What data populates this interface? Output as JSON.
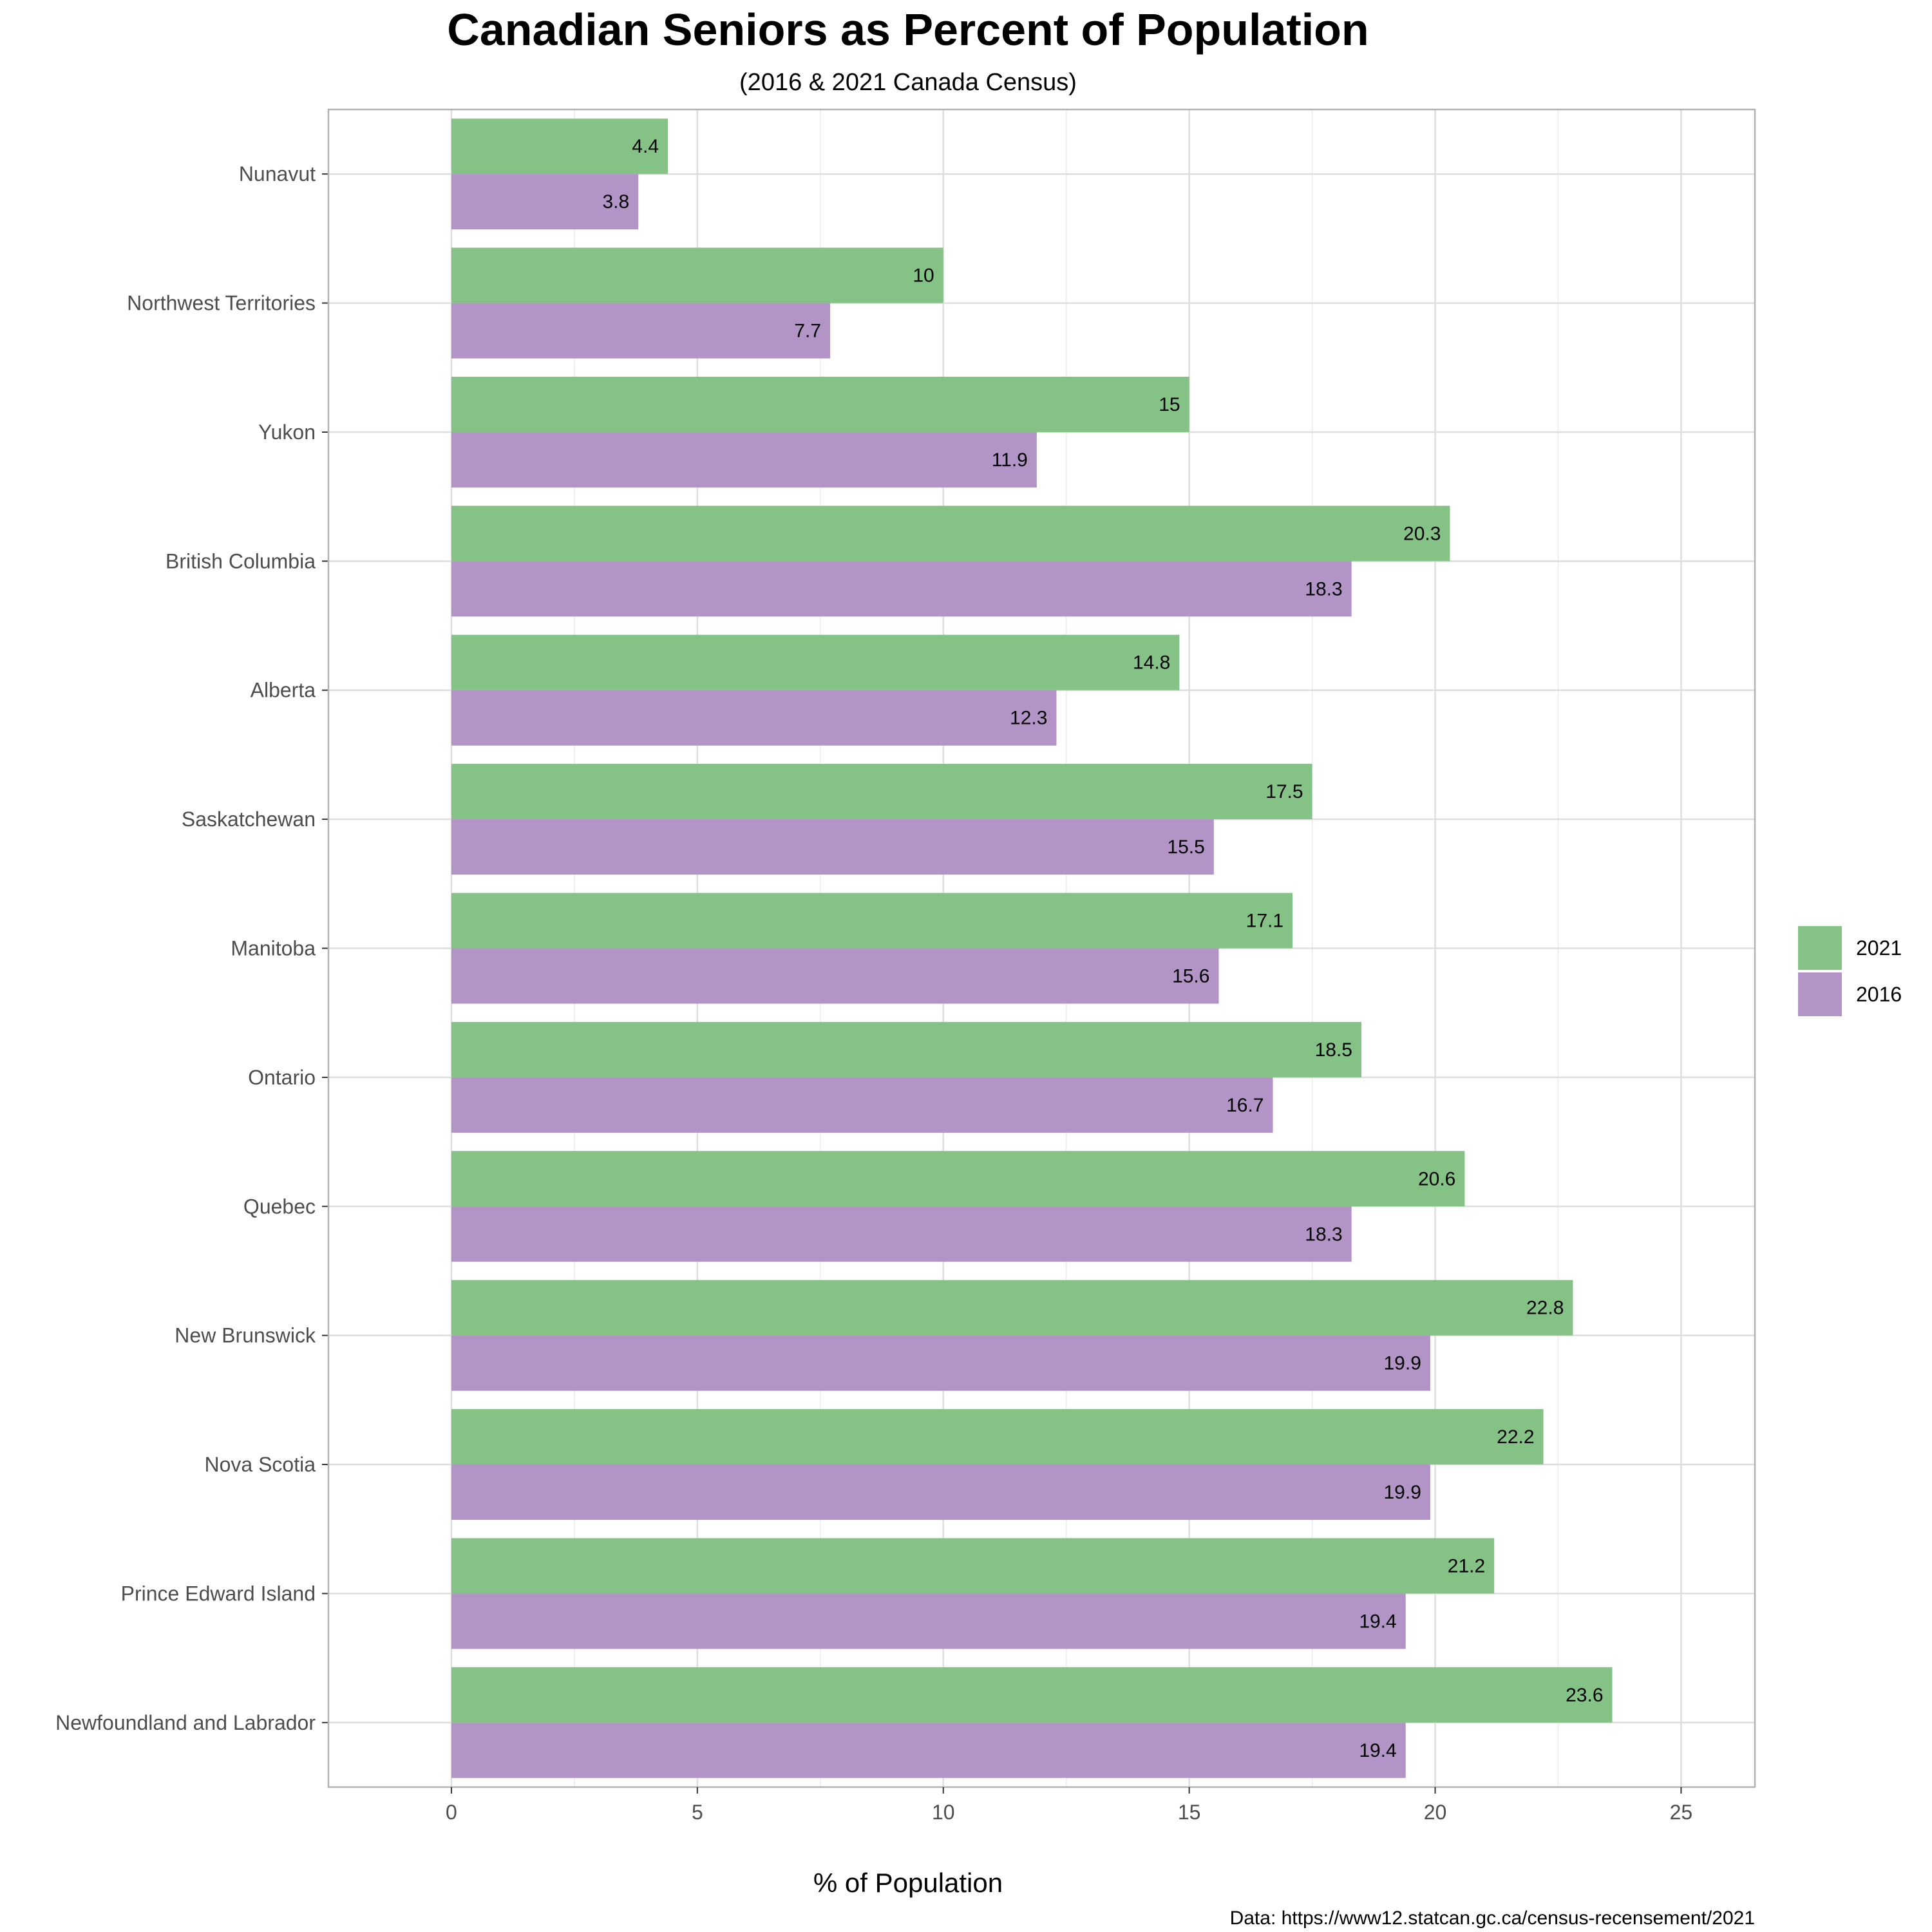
{
  "chart_data": {
    "type": "bar",
    "orientation": "horizontal",
    "title": "Canadian Seniors as Percent of Population",
    "subtitle": "(2016 & 2021 Canada Census)",
    "xlabel": "% of Population",
    "ylabel": "",
    "caption": "Data: https://www12.statcan.gc.ca/census-recensement/2021",
    "xlim": [
      -2.5,
      26.5
    ],
    "xticks": [
      0,
      5,
      10,
      15,
      20,
      25
    ],
    "xtick_labels": [
      "0",
      "5",
      "10",
      "15",
      "20",
      "25"
    ],
    "grid": true,
    "legend_position": "right",
    "categories": [
      "Nunavut",
      "Northwest Territories",
      "Yukon",
      "British Columbia",
      "Alberta",
      "Saskatchewan",
      "Manitoba",
      "Ontario",
      "Quebec",
      "New Brunswick",
      "Nova Scotia",
      "Prince Edward Island",
      "Newfoundland and Labrador"
    ],
    "series": [
      {
        "name": "2021",
        "color": "#85c285",
        "values": [
          4.4,
          10,
          15,
          20.3,
          14.8,
          17.5,
          17.1,
          18.5,
          20.6,
          22.8,
          22.2,
          21.2,
          23.6
        ],
        "labels": [
          "4.4",
          "10",
          "15",
          "20.3",
          "14.8",
          "17.5",
          "17.1",
          "18.5",
          "20.6",
          "22.8",
          "22.2",
          "21.2",
          "23.6"
        ]
      },
      {
        "name": "2016",
        "color": "#b294c7",
        "values": [
          3.8,
          7.7,
          11.9,
          18.3,
          12.3,
          15.5,
          15.6,
          16.7,
          18.3,
          19.9,
          19.9,
          19.4,
          19.4
        ],
        "labels": [
          "3.8",
          "7.7",
          "11.9",
          "18.3",
          "12.3",
          "15.5",
          "15.6",
          "16.7",
          "18.3",
          "19.9",
          "19.9",
          "19.4",
          "19.4"
        ]
      }
    ]
  }
}
